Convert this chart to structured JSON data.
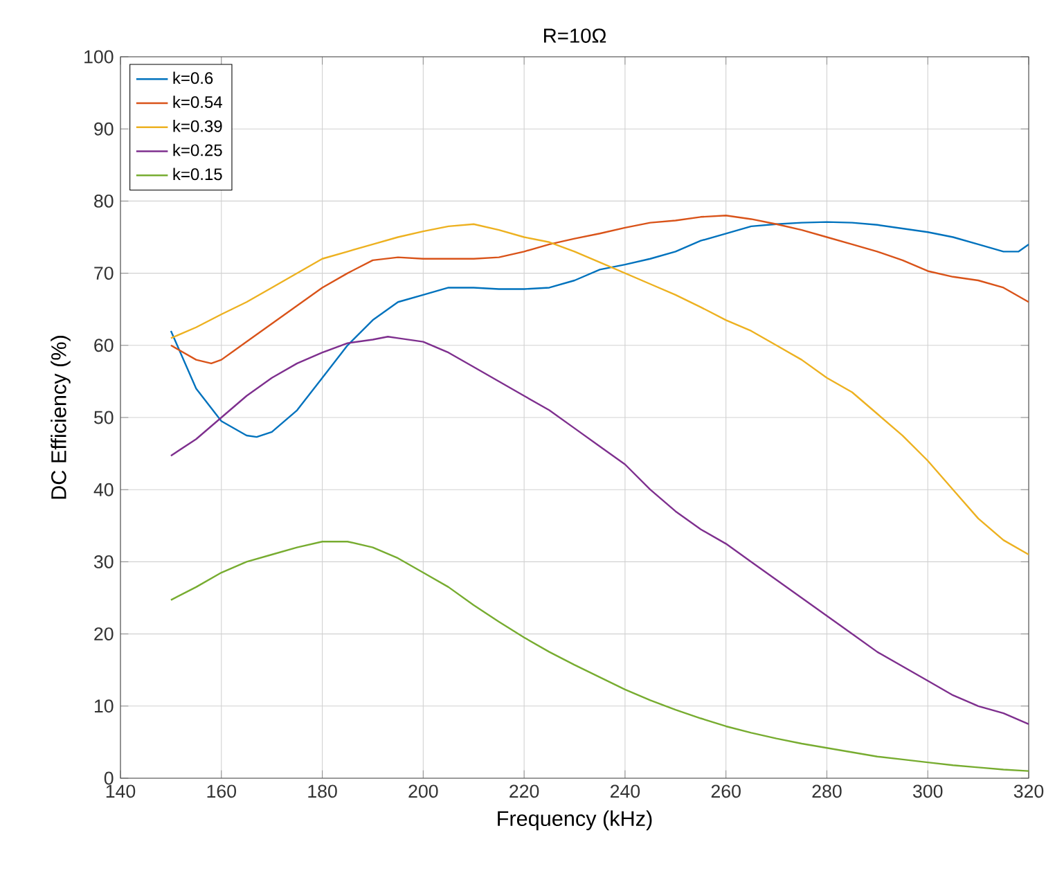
{
  "chart_data": {
    "type": "line",
    "title": "R=10Ω",
    "xlabel": "Frequency (kHz)",
    "ylabel": "DC Efficiency (%)",
    "xlim": [
      140,
      320
    ],
    "ylim": [
      0,
      100
    ],
    "xticks": [
      140,
      160,
      180,
      200,
      220,
      240,
      260,
      280,
      300,
      320
    ],
    "yticks": [
      0,
      10,
      20,
      30,
      40,
      50,
      60,
      70,
      80,
      90,
      100
    ],
    "grid": true,
    "legend": "top left",
    "series": [
      {
        "name": "k=0.6",
        "color": "#0072bd",
        "x": [
          150,
          155,
          160,
          165,
          167,
          170,
          175,
          180,
          185,
          190,
          195,
          200,
          205,
          210,
          215,
          220,
          225,
          230,
          235,
          240,
          245,
          250,
          255,
          260,
          265,
          270,
          275,
          280,
          285,
          290,
          295,
          300,
          305,
          310,
          315,
          318,
          320
        ],
        "values": [
          62,
          54,
          49.5,
          47.5,
          47.3,
          48,
          51,
          55.5,
          60,
          63.5,
          66,
          67,
          68,
          68,
          67.8,
          67.8,
          68,
          69,
          70.5,
          71.2,
          72,
          73,
          74.5,
          75.5,
          76.5,
          76.8,
          77,
          77.1,
          77,
          76.7,
          76.2,
          75.7,
          75,
          74,
          73,
          73,
          74
        ]
      },
      {
        "name": "k=0.54",
        "color": "#d95319",
        "x": [
          150,
          155,
          158,
          160,
          165,
          170,
          175,
          180,
          185,
          190,
          195,
          200,
          205,
          210,
          215,
          220,
          225,
          230,
          235,
          240,
          245,
          250,
          255,
          260,
          265,
          270,
          275,
          280,
          285,
          290,
          295,
          300,
          305,
          310,
          315,
          320
        ],
        "values": [
          60,
          58,
          57.5,
          58,
          60.5,
          63,
          65.5,
          68,
          70,
          71.8,
          72.2,
          72,
          72,
          72,
          72.2,
          73,
          74,
          74.8,
          75.5,
          76.3,
          77,
          77.3,
          77.8,
          78,
          77.5,
          76.8,
          76,
          75,
          74,
          73,
          71.8,
          70.3,
          69.5,
          69,
          68,
          66
        ]
      },
      {
        "name": "k=0.39",
        "color": "#edb120",
        "x": [
          150,
          155,
          160,
          165,
          170,
          175,
          180,
          185,
          190,
          195,
          200,
          205,
          210,
          215,
          220,
          225,
          230,
          235,
          240,
          245,
          250,
          255,
          260,
          265,
          270,
          275,
          280,
          285,
          290,
          295,
          300,
          305,
          310,
          315,
          320
        ],
        "values": [
          61,
          62.5,
          64.3,
          66,
          68,
          70,
          72,
          73,
          74,
          75,
          75.8,
          76.5,
          76.8,
          76,
          75,
          74.3,
          73,
          71.5,
          70,
          68.5,
          67,
          65.3,
          63.5,
          62,
          60,
          58,
          55.5,
          53.5,
          50.5,
          47.5,
          44,
          40,
          36,
          33,
          31
        ]
      },
      {
        "name": "k=0.25",
        "color": "#7e2f8e",
        "x": [
          150,
          155,
          160,
          165,
          170,
          175,
          180,
          185,
          190,
          193,
          195,
          200,
          205,
          210,
          215,
          220,
          225,
          230,
          235,
          240,
          245,
          250,
          255,
          260,
          265,
          270,
          275,
          280,
          285,
          290,
          295,
          300,
          305,
          310,
          315,
          320
        ],
        "values": [
          44.7,
          47,
          50,
          53,
          55.5,
          57.5,
          59,
          60.3,
          60.8,
          61.2,
          61,
          60.5,
          59,
          57,
          55,
          53,
          51,
          48.5,
          46,
          43.5,
          40,
          37,
          34.5,
          32.5,
          30,
          27.5,
          25,
          22.5,
          20,
          17.5,
          15.5,
          13.5,
          11.5,
          10,
          9,
          7.5
        ]
      },
      {
        "name": "k=0.15",
        "color": "#77ac30",
        "x": [
          150,
          155,
          160,
          165,
          170,
          175,
          180,
          185,
          190,
          195,
          200,
          205,
          210,
          215,
          220,
          225,
          230,
          235,
          240,
          245,
          250,
          255,
          260,
          265,
          270,
          275,
          280,
          285,
          290,
          295,
          300,
          305,
          310,
          315,
          320
        ],
        "values": [
          24.7,
          26.5,
          28.5,
          30,
          31,
          32,
          32.8,
          32.8,
          32,
          30.5,
          28.5,
          26.5,
          24,
          21.7,
          19.5,
          17.5,
          15.7,
          14,
          12.3,
          10.8,
          9.5,
          8.3,
          7.2,
          6.3,
          5.5,
          4.8,
          4.2,
          3.6,
          3,
          2.6,
          2.2,
          1.8,
          1.5,
          1.2,
          1
        ]
      }
    ]
  }
}
